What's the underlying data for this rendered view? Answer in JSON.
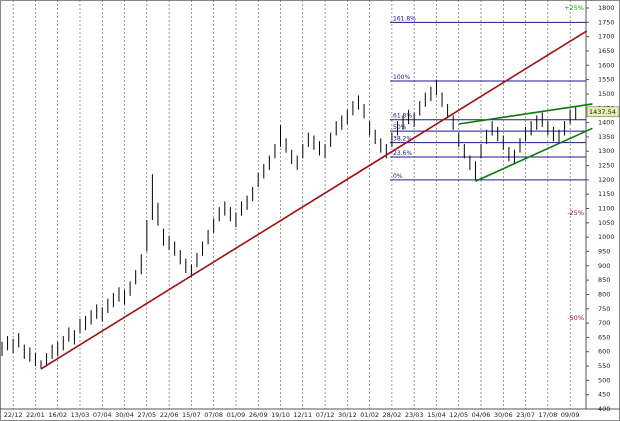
{
  "chart_data": {
    "type": "hilo",
    "categories": [
      null,
      null,
      "22/12",
      null,
      null,
      null,
      "22/01",
      null,
      null,
      null,
      "16/02",
      null,
      null,
      null,
      "13/03",
      null,
      null,
      null,
      "07/04",
      null,
      null,
      null,
      "30/04",
      null,
      null,
      null,
      "27/05",
      null,
      null,
      null,
      "22/06",
      null,
      null,
      null,
      "15/07",
      null,
      null,
      null,
      "07/08",
      null,
      null,
      null,
      "01/09",
      null,
      null,
      null,
      "26/09",
      null,
      null,
      null,
      "19/10",
      null,
      null,
      null,
      "12/11",
      null,
      null,
      null,
      "07/12",
      null,
      null,
      null,
      "30/12",
      null,
      null,
      null,
      "01/02",
      null,
      null,
      null,
      "28/02",
      null,
      null,
      null,
      "23/03",
      null,
      null,
      null,
      "15/04",
      null,
      null,
      null,
      "12/05",
      null,
      null,
      null,
      "04/06",
      null,
      null,
      null,
      "30/06",
      null,
      null,
      null,
      "23/07",
      null,
      null,
      null,
      "17/08",
      null,
      null,
      null,
      "09/09",
      null
    ],
    "high": [
      635,
      655,
      645,
      665,
      625,
      615,
      595,
      570,
      595,
      625,
      635,
      655,
      685,
      675,
      715,
      725,
      745,
      765,
      755,
      785,
      805,
      825,
      815,
      845,
      885,
      940,
      1060,
      1220,
      1120,
      1030,
      1005,
      985,
      955,
      925,
      905,
      945,
      985,
      1025,
      1065,
      1105,
      1125,
      1105,
      1085,
      1125,
      1145,
      1175,
      1225,
      1255,
      1285,
      1325,
      1390,
      1345,
      1305,
      1285,
      1325,
      1365,
      1355,
      1335,
      1325,
      1365,
      1405,
      1425,
      1445,
      1475,
      1495,
      1465,
      1405,
      1375,
      1345,
      1325,
      1365,
      1405,
      1425,
      1445,
      1435,
      1475,
      1505,
      1525,
      1550,
      1505,
      1465,
      1425,
      1365,
      1325,
      1285,
      1265,
      1325,
      1375,
      1405,
      1385,
      1355,
      1315,
      1305,
      1345,
      1385,
      1405,
      1425,
      1435,
      1405,
      1385,
      1375,
      1405,
      1445,
      1455
    ],
    "low": [
      585,
      605,
      595,
      615,
      575,
      565,
      550,
      540,
      550,
      575,
      585,
      605,
      635,
      625,
      665,
      675,
      695,
      715,
      705,
      735,
      755,
      775,
      765,
      795,
      835,
      870,
      950,
      1060,
      1040,
      970,
      955,
      935,
      905,
      875,
      860,
      895,
      935,
      975,
      1015,
      1055,
      1075,
      1055,
      1035,
      1075,
      1095,
      1125,
      1175,
      1205,
      1235,
      1275,
      1315,
      1295,
      1255,
      1235,
      1275,
      1315,
      1305,
      1285,
      1275,
      1315,
      1355,
      1375,
      1395,
      1425,
      1445,
      1415,
      1355,
      1325,
      1295,
      1275,
      1315,
      1355,
      1375,
      1395,
      1385,
      1425,
      1455,
      1475,
      1495,
      1455,
      1415,
      1375,
      1315,
      1275,
      1235,
      1200,
      1275,
      1325,
      1355,
      1335,
      1305,
      1265,
      1255,
      1295,
      1335,
      1355,
      1375,
      1385,
      1355,
      1335,
      1325,
      1355,
      1395,
      1410
    ],
    "color": "#000000",
    "ylim": [
      400,
      1800
    ],
    "yticks": [
      400,
      450,
      500,
      550,
      600,
      650,
      700,
      750,
      800,
      850,
      900,
      950,
      1000,
      1050,
      1100,
      1150,
      1200,
      1250,
      1300,
      1350,
      1400,
      1450,
      1500,
      1550,
      1600,
      1650,
      1700,
      1750,
      1800
    ],
    "fib_levels": [
      {
        "value": 1750,
        "label": "161.8%"
      },
      {
        "value": 1545,
        "label": "100%"
      },
      {
        "value": 1410,
        "label": "61.8%"
      },
      {
        "value": 1370,
        "label": "50%"
      },
      {
        "value": 1330,
        "label": "38.2%"
      },
      {
        "value": 1280,
        "label": "23.6%"
      },
      {
        "value": 1200,
        "label": "0%"
      }
    ],
    "fib_color": "#1a1a8c",
    "trend_lines": [
      {
        "color": "#a01010",
        "x": [
          7,
          105
        ],
        "values": [
          540,
          1720
        ]
      },
      {
        "color": "#0a7a0a",
        "x": [
          82,
          106
        ],
        "values": [
          1395,
          1465
        ]
      },
      {
        "color": "#0a7a0a",
        "x": [
          85,
          106
        ],
        "values": [
          1195,
          1380
        ]
      }
    ],
    "annotations": [
      {
        "value": 1800,
        "label": "+25%",
        "color": "#2a8a2a"
      },
      {
        "value": 1085,
        "label": "-25%",
        "color": "#a01010"
      },
      {
        "value": 718,
        "label": "-50%",
        "color": "#a01010"
      }
    ],
    "last_price": 1437.54,
    "last_price_color": "#e8f0b0"
  }
}
